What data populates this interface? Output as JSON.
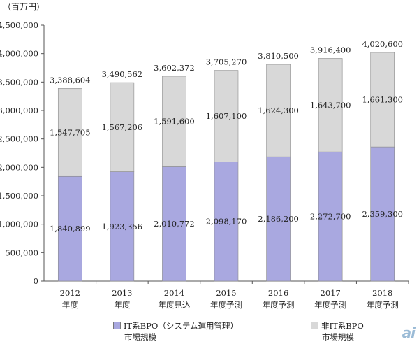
{
  "chart_data": {
    "type": "bar",
    "stacked": true,
    "unit_label": "（百万円）",
    "categories": [
      {
        "year": "2012",
        "label": "年度"
      },
      {
        "year": "2013",
        "label": "年度"
      },
      {
        "year": "2014",
        "label": "年度見込"
      },
      {
        "year": "2015",
        "label": "年度予測"
      },
      {
        "year": "2016",
        "label": "年度予測"
      },
      {
        "year": "2017",
        "label": "年度予測"
      },
      {
        "year": "2018",
        "label": "年度予測"
      }
    ],
    "series": [
      {
        "name_line1": "IT系BPO（システム運用管理）",
        "name_line2": "市場規模",
        "color": "#a9a8e0",
        "values": [
          1840899,
          1923356,
          2010772,
          2098170,
          2186200,
          2272700,
          2359300
        ],
        "value_labels": [
          "1,840,899",
          "1,923,356",
          "2,010,772",
          "2,098,170",
          "2,186,200",
          "2,272,700",
          "2,359,300"
        ]
      },
      {
        "name_line1": "非IT系BPO",
        "name_line2": "市場規模",
        "color": "#d8d8d8",
        "values": [
          1547705,
          1567206,
          1591600,
          1607100,
          1624300,
          1643700,
          1661300
        ],
        "value_labels": [
          "1,547,705",
          "1,567,206",
          "1,591,600",
          "1,607,100",
          "1,624,300",
          "1,643,700",
          "1,661,300"
        ]
      }
    ],
    "totals": [
      3388604,
      3490562,
      3602372,
      3705270,
      3810500,
      3916400,
      4020600
    ],
    "total_labels": [
      "3,388,604",
      "3,490,562",
      "3,602,372",
      "3,705,270",
      "3,810,500",
      "3,916,400",
      "4,020,600"
    ],
    "ylim": [
      0,
      4500000
    ],
    "yticks": [
      0,
      500000,
      1000000,
      1500000,
      2000000,
      2500000,
      3000000,
      3500000,
      4000000,
      4500000
    ],
    "ytick_labels": [
      "0",
      "500,000",
      "1,000,000",
      "1,500,000",
      "2,000,000",
      "2,500,000",
      "3,000,000",
      "3,500,000",
      "4,000,000",
      "4,500,000"
    ],
    "grid": false,
    "legend_position": "bottom"
  },
  "watermark": "ai"
}
